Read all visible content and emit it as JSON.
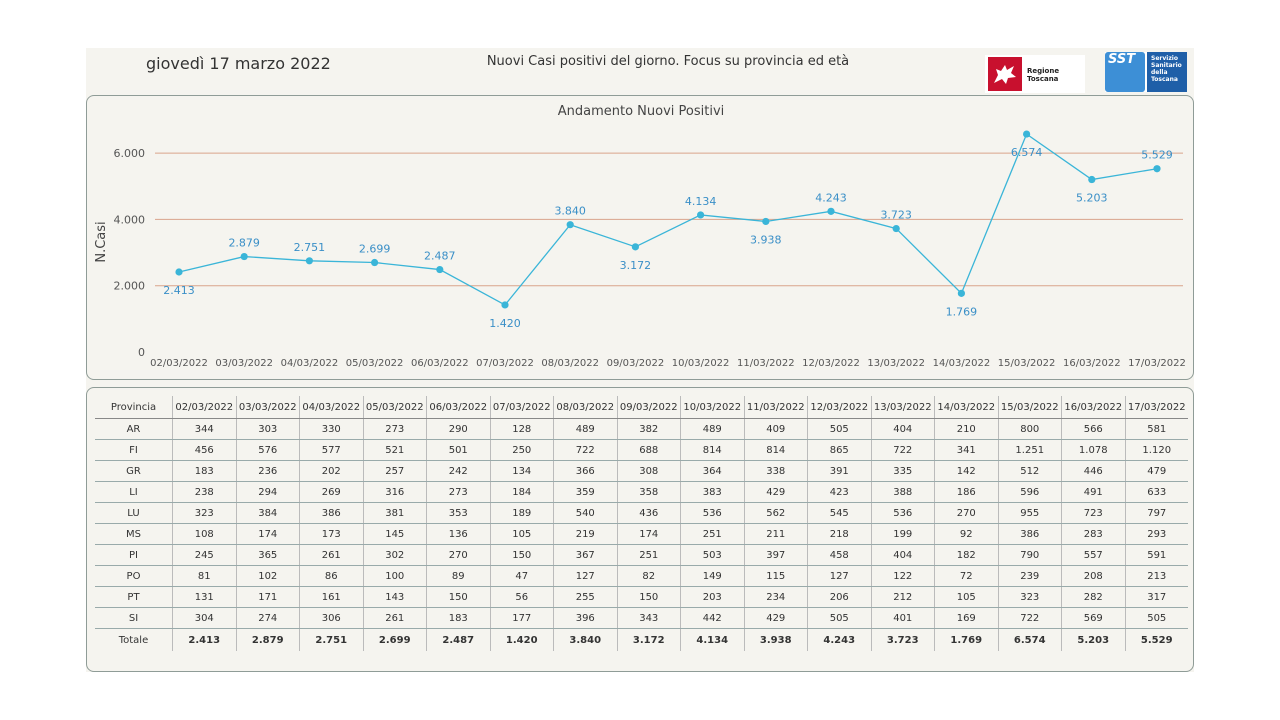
{
  "header": {
    "date": "giovedì 17 marzo 2022",
    "subtitle": "Nuovi Casi positivi del giorno. Focus su provincia ed età",
    "logo_rt_text": "Regione Toscana",
    "logo_sst_mark": "SST",
    "logo_sst_text": "Servizio Sanitario della Toscana"
  },
  "colors": {
    "line": "#3ab5d8",
    "gridline": "#d9a38b",
    "label": "#3a8fc7"
  },
  "chart_data": {
    "type": "line",
    "title": "Andamento Nuovi Positivi",
    "ylabel": "N.Casi",
    "xlabel": "",
    "ylim": [
      0,
      7000
    ],
    "yticks": [
      0,
      2000,
      4000,
      6000
    ],
    "ytick_labels": [
      "0",
      "2.000",
      "4.000",
      "6.000"
    ],
    "grid": true,
    "categories": [
      "02/03/2022",
      "03/03/2022",
      "04/03/2022",
      "05/03/2022",
      "06/03/2022",
      "07/03/2022",
      "08/03/2022",
      "09/03/2022",
      "10/03/2022",
      "11/03/2022",
      "12/03/2022",
      "13/03/2022",
      "14/03/2022",
      "15/03/2022",
      "16/03/2022",
      "17/03/2022"
    ],
    "values": [
      2413,
      2879,
      2751,
      2699,
      2487,
      1420,
      3840,
      3172,
      4134,
      3938,
      4243,
      3723,
      1769,
      6574,
      5203,
      5529
    ],
    "data_labels": [
      "2.413",
      "2.879",
      "2.751",
      "2.699",
      "2.487",
      "1.420",
      "3.840",
      "3.172",
      "4.134",
      "3.938",
      "4.243",
      "3.723",
      "1.769",
      "6.574",
      "5.203",
      "5.529"
    ],
    "label_positions": [
      "below",
      "above",
      "above",
      "above",
      "above",
      "below",
      "above",
      "below",
      "above",
      "below",
      "above",
      "above",
      "below",
      "below",
      "below",
      "above"
    ]
  },
  "table": {
    "header_label": "Provincia",
    "columns": [
      "02/03/2022",
      "03/03/2022",
      "04/03/2022",
      "05/03/2022",
      "06/03/2022",
      "07/03/2022",
      "08/03/2022",
      "09/03/2022",
      "10/03/2022",
      "11/03/2022",
      "12/03/2022",
      "13/03/2022",
      "14/03/2022",
      "15/03/2022",
      "16/03/2022",
      "17/03/2022"
    ],
    "rows": [
      {
        "label": "AR",
        "values": [
          "344",
          "303",
          "330",
          "273",
          "290",
          "128",
          "489",
          "382",
          "489",
          "409",
          "505",
          "404",
          "210",
          "800",
          "566",
          "581"
        ]
      },
      {
        "label": "FI",
        "values": [
          "456",
          "576",
          "577",
          "521",
          "501",
          "250",
          "722",
          "688",
          "814",
          "814",
          "865",
          "722",
          "341",
          "1.251",
          "1.078",
          "1.120"
        ]
      },
      {
        "label": "GR",
        "values": [
          "183",
          "236",
          "202",
          "257",
          "242",
          "134",
          "366",
          "308",
          "364",
          "338",
          "391",
          "335",
          "142",
          "512",
          "446",
          "479"
        ]
      },
      {
        "label": "LI",
        "values": [
          "238",
          "294",
          "269",
          "316",
          "273",
          "184",
          "359",
          "358",
          "383",
          "429",
          "423",
          "388",
          "186",
          "596",
          "491",
          "633"
        ]
      },
      {
        "label": "LU",
        "values": [
          "323",
          "384",
          "386",
          "381",
          "353",
          "189",
          "540",
          "436",
          "536",
          "562",
          "545",
          "536",
          "270",
          "955",
          "723",
          "797"
        ]
      },
      {
        "label": "MS",
        "values": [
          "108",
          "174",
          "173",
          "145",
          "136",
          "105",
          "219",
          "174",
          "251",
          "211",
          "218",
          "199",
          "92",
          "386",
          "283",
          "293"
        ]
      },
      {
        "label": "PI",
        "values": [
          "245",
          "365",
          "261",
          "302",
          "270",
          "150",
          "367",
          "251",
          "503",
          "397",
          "458",
          "404",
          "182",
          "790",
          "557",
          "591"
        ]
      },
      {
        "label": "PO",
        "values": [
          "81",
          "102",
          "86",
          "100",
          "89",
          "47",
          "127",
          "82",
          "149",
          "115",
          "127",
          "122",
          "72",
          "239",
          "208",
          "213"
        ]
      },
      {
        "label": "PT",
        "values": [
          "131",
          "171",
          "161",
          "143",
          "150",
          "56",
          "255",
          "150",
          "203",
          "234",
          "206",
          "212",
          "105",
          "323",
          "282",
          "317"
        ]
      },
      {
        "label": "SI",
        "values": [
          "304",
          "274",
          "306",
          "261",
          "183",
          "177",
          "396",
          "343",
          "442",
          "429",
          "505",
          "401",
          "169",
          "722",
          "569",
          "505"
        ]
      }
    ],
    "total": {
      "label": "Totale",
      "values": [
        "2.413",
        "2.879",
        "2.751",
        "2.699",
        "2.487",
        "1.420",
        "3.840",
        "3.172",
        "4.134",
        "3.938",
        "4.243",
        "3.723",
        "1.769",
        "6.574",
        "5.203",
        "5.529"
      ]
    }
  }
}
